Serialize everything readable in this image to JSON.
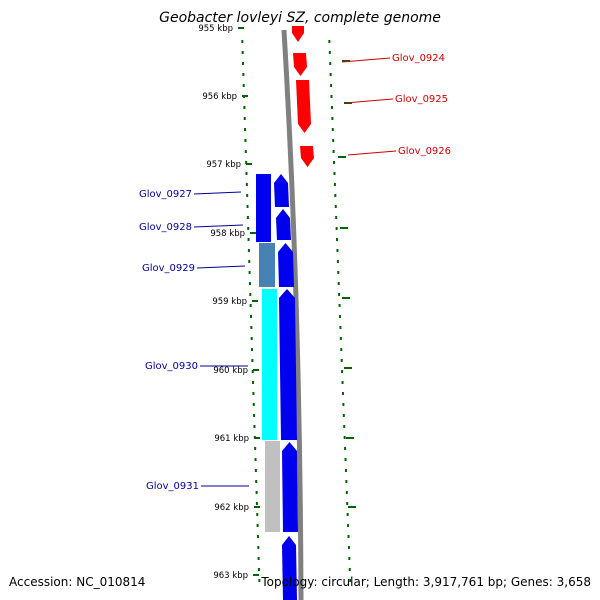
{
  "title": "Geobacter lovleyi SZ, complete genome",
  "footer": {
    "accession": "Accession: NC_010814",
    "summary": "Topology: circular; Length: 3,917,761 bp; Genes: 3,658"
  },
  "colors": {
    "forward_gene": "#ff0000",
    "reverse_gene": "#0000ee",
    "cog_steelblue": "#4682b4",
    "cog_cyan": "#00ffff",
    "cog_gray": "#c0c0c0",
    "backbone": "#808080",
    "tick": "#006400",
    "forward_label": "#cc0000",
    "reverse_label": "#000099"
  },
  "ticks": [
    "955 kbp",
    "956 kbp",
    "957 kbp",
    "958 kbp",
    "959 kbp",
    "960 kbp",
    "961 kbp",
    "962 kbp",
    "963 kbp"
  ],
  "genes": [
    {
      "name": "Glov_0924",
      "strand": "+"
    },
    {
      "name": "Glov_0925",
      "strand": "+"
    },
    {
      "name": "Glov_0926",
      "strand": "+"
    },
    {
      "name": "Glov_0927",
      "strand": "-"
    },
    {
      "name": "Glov_0928",
      "strand": "-"
    },
    {
      "name": "Glov_0929",
      "strand": "-"
    },
    {
      "name": "Glov_0930",
      "strand": "-"
    },
    {
      "name": "Glov_0931",
      "strand": "-"
    }
  ]
}
